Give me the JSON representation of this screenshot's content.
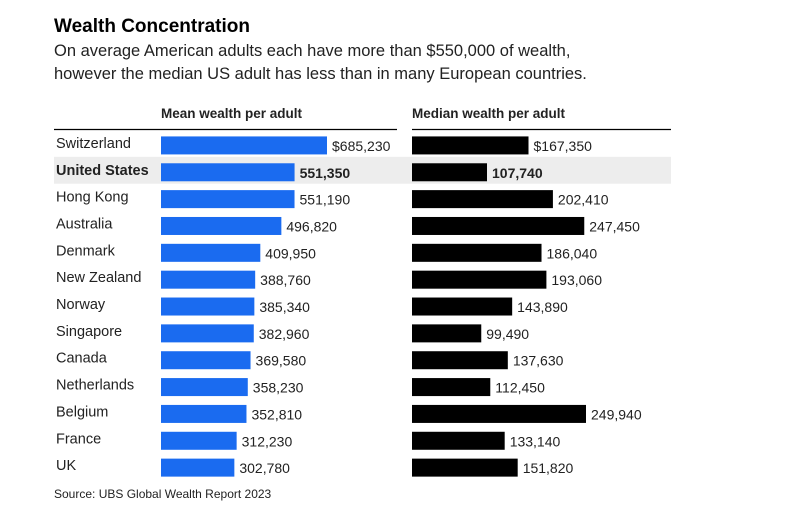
{
  "title": "Wealth Concentration",
  "subtitle_line1": "On average American adults each have more than $550,000 of wealth,",
  "subtitle_line2": "however the median US adult has less than in many European countries.",
  "source": "Source: UBS Global Wealth Report 2023",
  "colors": {
    "mean_bar": "#1a6bf0",
    "median_bar": "#000000",
    "highlight_row": "#ededed"
  },
  "chart_data": {
    "type": "bar",
    "orientation": "horizontal",
    "highlight": "United States",
    "categories": [
      "Switzerland",
      "United States",
      "Hong Kong",
      "Australia",
      "Denmark",
      "New Zealand",
      "Norway",
      "Singapore",
      "Canada",
      "Netherlands",
      "Belgium",
      "France",
      "UK"
    ],
    "series": [
      {
        "name": "Mean wealth per adult",
        "values": [
          685230,
          551350,
          551190,
          496820,
          409950,
          388760,
          385340,
          382960,
          369580,
          358230,
          352810,
          312230,
          302780
        ],
        "labels": [
          "$685,230",
          "551,350",
          "551,190",
          "496,820",
          "409,950",
          "388,760",
          "385,340",
          "382,960",
          "369,580",
          "358,230",
          "352,810",
          "312,230",
          "302,780"
        ]
      },
      {
        "name": "Median wealth per adult",
        "values": [
          167350,
          107740,
          202410,
          247450,
          186040,
          193060,
          143890,
          99490,
          137630,
          112450,
          249940,
          133140,
          151820
        ],
        "labels": [
          "$167,350",
          "107,740",
          "202,410",
          "247,450",
          "186,040",
          "193,060",
          "143,890",
          "99,490",
          "137,630",
          "112,450",
          "249,940",
          "133,140",
          "151,820"
        ]
      }
    ]
  }
}
